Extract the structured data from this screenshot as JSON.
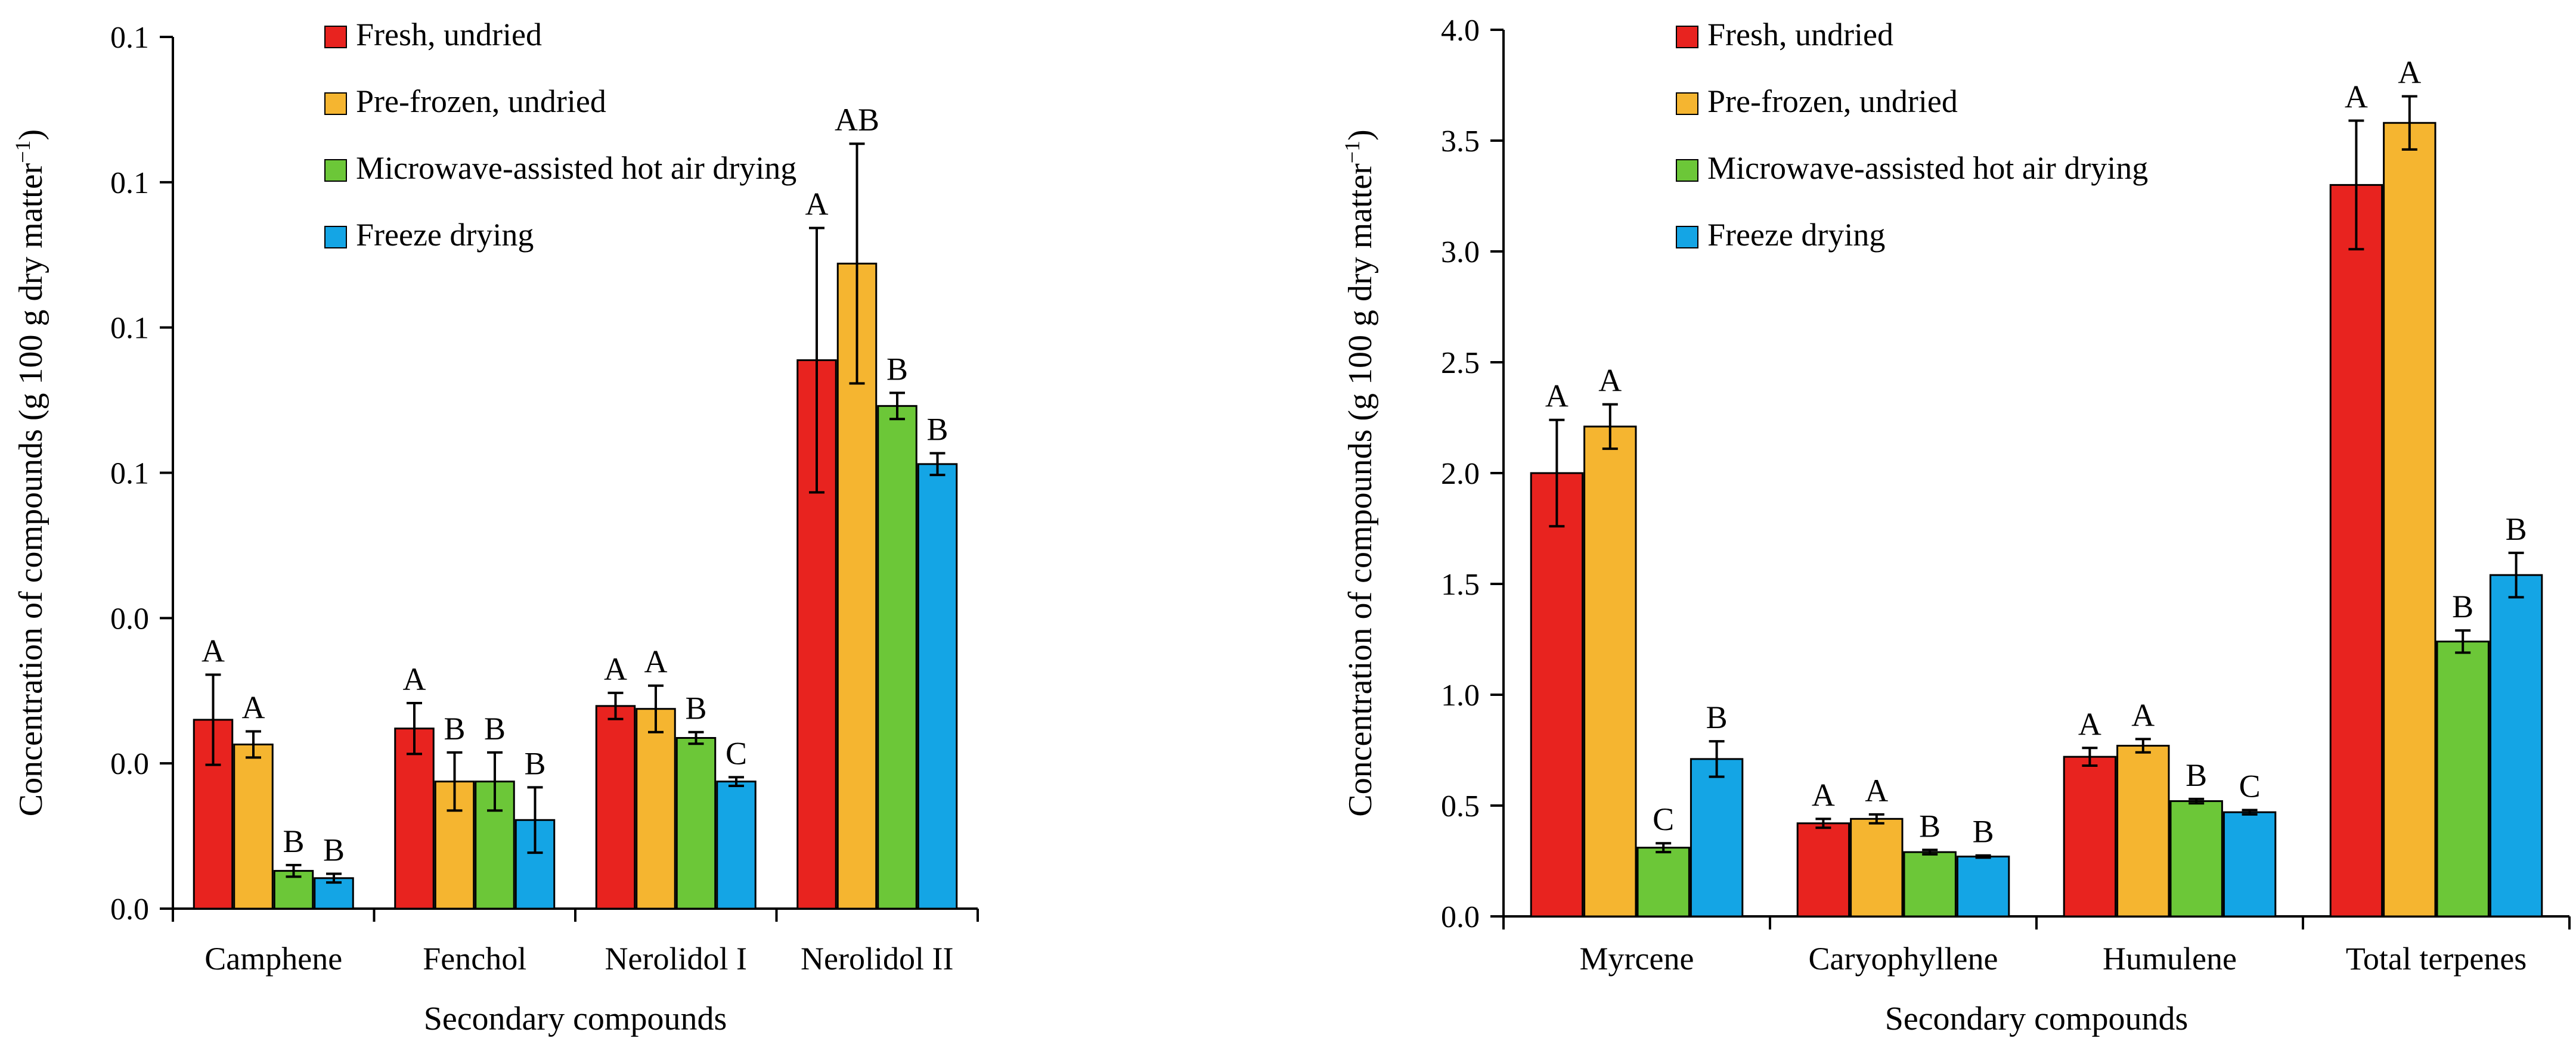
{
  "colors": {
    "fresh": "#E8231F",
    "prefrozen": "#F5B530",
    "microwave": "#6CC738",
    "freeze": "#14A5E5"
  },
  "chart_data": [
    {
      "id": "left",
      "type": "bar",
      "ylabel_main": "Concentration of compounds (g 100 g dry matter",
      "ylabel_sup": "−1",
      "ylabel_close": ")",
      "xlabel": "Secondary compounds",
      "ylim": [
        0,
        0.12
      ],
      "ytick_values": [
        0,
        0.02,
        0.04,
        0.06,
        0.08,
        0.1,
        0.12
      ],
      "ytick_labels": [
        "0.0",
        "0.0",
        "0.0",
        "0.1",
        "0.1",
        "0.1",
        "0.1"
      ],
      "categories": [
        "Camphene",
        "Fenchol",
        "Nerolidol I",
        "Nerolidol II"
      ],
      "series": [
        {
          "name": "Fresh, undried",
          "color_key": "fresh",
          "values": [
            0.026,
            0.0248,
            0.0279,
            0.0755
          ],
          "errors": [
            0.0062,
            0.0035,
            0.0018,
            0.0182
          ],
          "letters": [
            "A",
            "A",
            "A",
            "A"
          ]
        },
        {
          "name": "Pre-frozen, undried",
          "color_key": "prefrozen",
          "values": [
            0.0226,
            0.0175,
            0.0275,
            0.0888
          ],
          "errors": [
            0.0018,
            0.004,
            0.0032,
            0.0165
          ],
          "letters": [
            "A",
            "B",
            "A",
            "AB"
          ]
        },
        {
          "name": "Microwave-assisted hot air drying",
          "color_key": "microwave",
          "values": [
            0.0052,
            0.0175,
            0.0235,
            0.0692
          ],
          "errors": [
            0.0008,
            0.004,
            0.0008,
            0.0018
          ],
          "letters": [
            "B",
            "B",
            "B",
            "B"
          ]
        },
        {
          "name": "Freeze drying",
          "color_key": "freeze",
          "values": [
            0.0042,
            0.0122,
            0.0175,
            0.0612
          ],
          "errors": [
            0.0006,
            0.0045,
            0.0006,
            0.0015
          ],
          "letters": [
            "B",
            "B",
            "C",
            "B"
          ]
        }
      ],
      "legend_position": "top-left"
    },
    {
      "id": "right",
      "type": "bar",
      "ylabel_main": "Concentration of compounds (g 100 g dry matter",
      "ylabel_sup": "−1",
      "ylabel_close": ")",
      "xlabel": "Secondary compounds",
      "ylim": [
        0,
        4.0
      ],
      "ytick_values": [
        0,
        0.5,
        1.0,
        1.5,
        2.0,
        2.5,
        3.0,
        3.5,
        4.0
      ],
      "ytick_labels": [
        "0.0",
        "0.5",
        "1.0",
        "1.5",
        "2.0",
        "2.5",
        "3.0",
        "3.5",
        "4.0"
      ],
      "categories": [
        "Myrcene",
        "Caryophyllene",
        "Humulene",
        "Total terpenes"
      ],
      "series": [
        {
          "name": "Fresh, undried",
          "color_key": "fresh",
          "values": [
            2.0,
            0.42,
            0.72,
            3.3
          ],
          "errors": [
            0.24,
            0.02,
            0.04,
            0.29
          ],
          "letters": [
            "A",
            "A",
            "A",
            "A"
          ]
        },
        {
          "name": "Pre-frozen, undried",
          "color_key": "prefrozen",
          "values": [
            2.21,
            0.44,
            0.77,
            3.58
          ],
          "errors": [
            0.1,
            0.02,
            0.03,
            0.12
          ],
          "letters": [
            "A",
            "A",
            "A",
            "A"
          ]
        },
        {
          "name": "Microwave-assisted hot air drying",
          "color_key": "microwave",
          "values": [
            0.31,
            0.29,
            0.52,
            1.24
          ],
          "errors": [
            0.02,
            0.01,
            0.01,
            0.05
          ],
          "letters": [
            "C",
            "B",
            "B",
            "B"
          ]
        },
        {
          "name": "Freeze drying",
          "color_key": "freeze",
          "values": [
            0.71,
            0.27,
            0.47,
            1.54
          ],
          "errors": [
            0.08,
            0.005,
            0.01,
            0.1
          ],
          "letters": [
            "B",
            "B",
            "C",
            "B"
          ]
        }
      ],
      "legend_position": "top-left"
    }
  ]
}
